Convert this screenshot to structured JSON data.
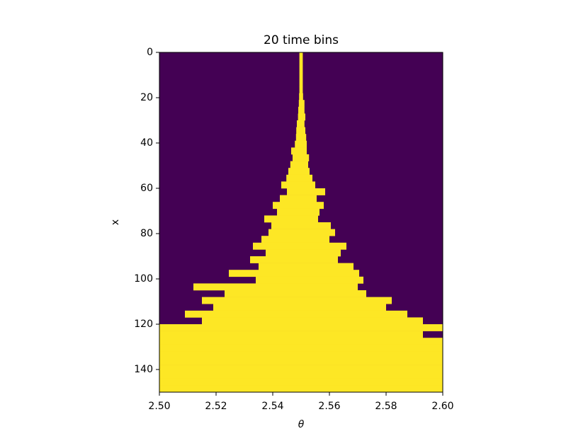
{
  "chart_data": {
    "type": "row-intervals",
    "title": "20 time bins",
    "x_label": "θ",
    "y_label": "x",
    "background_color": "#440154",
    "color": "#fde725",
    "xlim": [
      2.5,
      2.6
    ],
    "xticks": [
      {
        "value": 2.5,
        "label": "2.50"
      },
      2.52,
      2.54,
      2.56,
      2.58,
      {
        "value": 2.6,
        "label": "2.60"
      }
    ],
    "ylim": [
      150,
      0
    ],
    "yticks": [
      0,
      20,
      40,
      60,
      80,
      100,
      120,
      140
    ],
    "rows": [
      0,
      3,
      6,
      9,
      12,
      15,
      18,
      21,
      24,
      27,
      30,
      33,
      36,
      39,
      42,
      45,
      48,
      51,
      54,
      57,
      60,
      63,
      66,
      69,
      72,
      75,
      78,
      81,
      84,
      87,
      90,
      93,
      96,
      99,
      102,
      105,
      108,
      111,
      114,
      117,
      120,
      123,
      126,
      129,
      132,
      135,
      138,
      141,
      144,
      147
    ],
    "left": [
      2.5494,
      2.5494,
      2.5494,
      2.5494,
      2.5494,
      2.5494,
      2.5493,
      2.5492,
      2.549,
      2.5489,
      2.5485,
      2.5483,
      2.5482,
      2.5478,
      2.5465,
      2.547,
      2.5462,
      2.5455,
      2.5448,
      2.543,
      2.545,
      2.5425,
      2.54,
      2.5415,
      2.537,
      2.5395,
      2.5385,
      2.536,
      2.533,
      2.5375,
      2.532,
      2.535,
      2.5245,
      2.534,
      2.512,
      2.523,
      2.515,
      2.519,
      2.509,
      2.515,
      2.5,
      2.5,
      2.5,
      2.5,
      2.5,
      2.5,
      2.5,
      2.5,
      2.5,
      2.5
    ],
    "right": [
      2.5506,
      2.5506,
      2.5506,
      2.5506,
      2.5506,
      2.5506,
      2.5507,
      2.5512,
      2.5512,
      2.5515,
      2.5512,
      2.5515,
      2.5518,
      2.552,
      2.552,
      2.5528,
      2.5525,
      2.553,
      2.554,
      2.555,
      2.5585,
      2.5555,
      2.558,
      2.5565,
      2.556,
      2.5605,
      2.562,
      2.56,
      2.566,
      2.564,
      2.563,
      2.5685,
      2.5705,
      2.572,
      2.57,
      2.573,
      2.582,
      2.58,
      2.5875,
      2.593,
      2.6,
      2.593,
      2.6,
      2.6,
      2.6,
      2.6,
      2.6,
      2.6,
      2.6,
      2.6
    ]
  }
}
